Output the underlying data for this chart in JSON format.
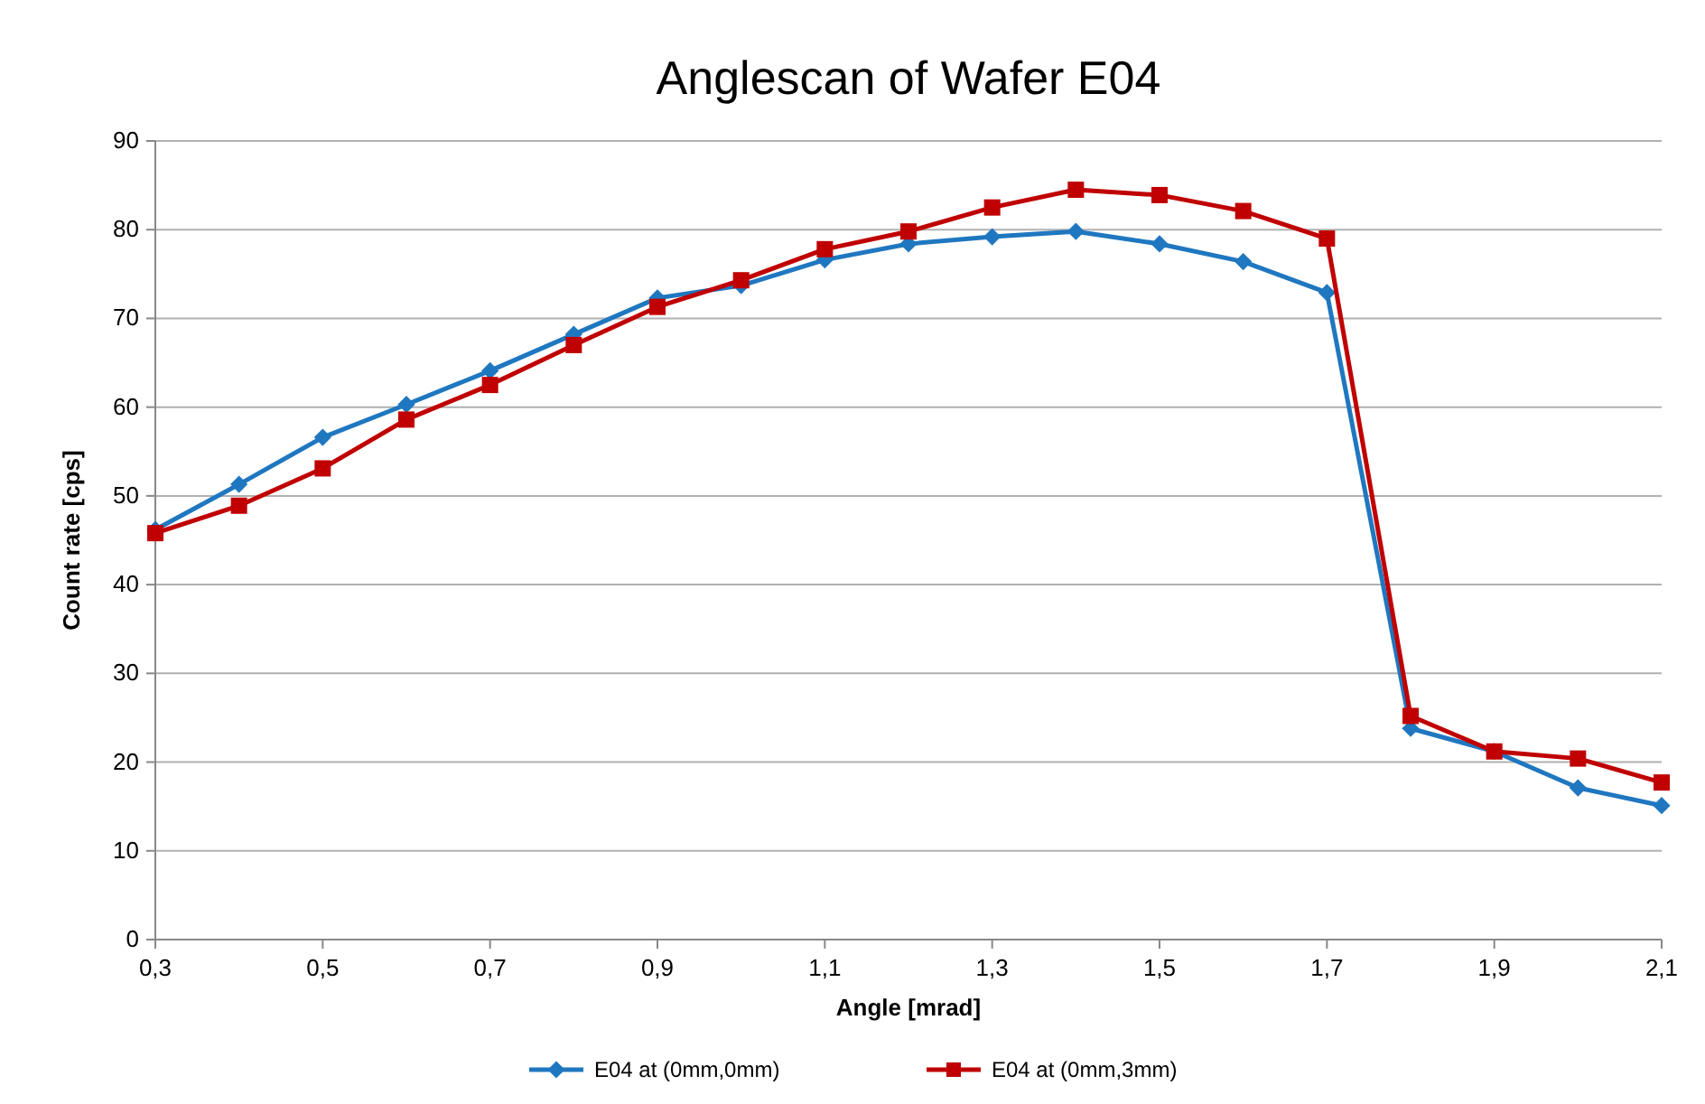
{
  "chart_data": {
    "type": "line",
    "title": "Anglescan of Wafer E04",
    "xlabel": "Angle [mrad]",
    "ylabel": "Count rate [cps]",
    "x": [
      0.3,
      0.4,
      0.5,
      0.6,
      0.7,
      0.8,
      0.9,
      1.0,
      1.1,
      1.2,
      1.3,
      1.4,
      1.5,
      1.6,
      1.7,
      1.8,
      1.9,
      2.0,
      2.1
    ],
    "series": [
      {
        "name": "E04 at (0mm,0mm)",
        "color": "#1f77c0",
        "marker": "diamond",
        "values": [
          46.2,
          51.3,
          56.6,
          60.3,
          64.1,
          68.2,
          72.3,
          73.7,
          76.6,
          78.4,
          79.2,
          79.8,
          78.4,
          76.4,
          72.9,
          23.8,
          21.2,
          17.1,
          15.1
        ]
      },
      {
        "name": "E04 at (0mm,3mm)",
        "color": "#c00000",
        "marker": "square",
        "values": [
          45.8,
          48.9,
          53.1,
          58.6,
          62.5,
          67.0,
          71.3,
          74.3,
          77.8,
          79.8,
          82.5,
          84.5,
          83.9,
          82.1,
          79.0,
          25.2,
          21.2,
          20.4,
          17.7
        ]
      }
    ],
    "xlim": [
      0.3,
      2.1
    ],
    "xticks": [
      {
        "value": 0.3,
        "label": "0,3"
      },
      {
        "value": 0.5,
        "label": "0,5"
      },
      {
        "value": 0.7,
        "label": "0,7"
      },
      {
        "value": 0.9,
        "label": "0,9"
      },
      {
        "value": 1.1,
        "label": "1,1"
      },
      {
        "value": 1.3,
        "label": "1,3"
      },
      {
        "value": 1.5,
        "label": "1,5"
      },
      {
        "value": 1.7,
        "label": "1,7"
      },
      {
        "value": 1.9,
        "label": "1,9"
      },
      {
        "value": 2.1,
        "label": "2,1"
      }
    ],
    "ylim": [
      0,
      90
    ],
    "yticks": [
      0,
      10,
      20,
      30,
      40,
      50,
      60,
      70,
      80,
      90
    ],
    "grid": "y",
    "legend": "bottom",
    "line_style": "solid"
  }
}
